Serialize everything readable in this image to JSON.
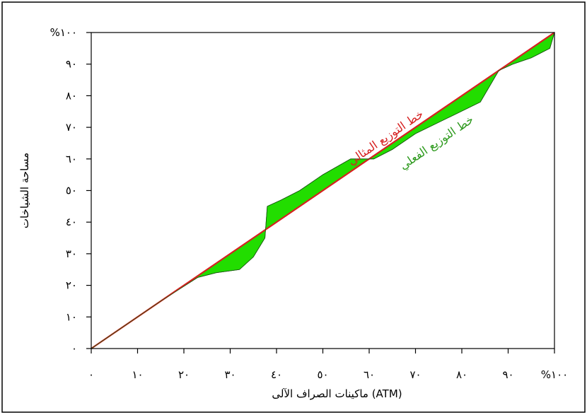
{
  "chart_data": {
    "type": "area",
    "xlabel": "ماكينات الصراف الآلى (ATM)",
    "ylabel": "مساحة الشياخات",
    "xlim": [
      0,
      100
    ],
    "ylim": [
      0,
      100
    ],
    "x_ticks": [
      0,
      10,
      20,
      30,
      40,
      50,
      60,
      70,
      80,
      90,
      100
    ],
    "y_ticks": [
      0,
      10,
      20,
      30,
      40,
      50,
      60,
      70,
      80,
      90,
      100
    ],
    "x_tick_labels": [
      "٠",
      "١٠",
      "٢٠",
      "٣٠",
      "٤٠",
      "٥٠",
      "٦٠",
      "٧٠",
      "٨٠",
      "٩٠",
      "%١٠٠"
    ],
    "y_tick_labels": [
      "٠",
      "١٠",
      "٢٠",
      "٣٠",
      "٤٠",
      "٥٠",
      "٦٠",
      "٧٠",
      "٨٠",
      "٩٠",
      "%١٠٠"
    ],
    "grid": false,
    "series": [
      {
        "name": "خط التوزيع المثالي",
        "color": "#d62020",
        "x": [
          0,
          100
        ],
        "y": [
          0,
          100
        ]
      },
      {
        "name": "خط التوزيع الفعلي",
        "color": "#22dd00",
        "x": [
          0,
          15,
          23,
          27,
          32,
          35,
          37.5,
          38,
          41,
          45,
          50,
          56,
          61,
          65,
          70,
          77,
          84,
          88,
          91,
          95,
          99,
          100
        ],
        "y": [
          0,
          15,
          22.5,
          24,
          25,
          29,
          35,
          45,
          47,
          50,
          55,
          60,
          60,
          63,
          68,
          73,
          78,
          88,
          90,
          92,
          95,
          100
        ]
      }
    ],
    "annotations": [
      {
        "text": "خط التوزيع المثالي",
        "color": "#d62020"
      },
      {
        "text": "خط التوزيع الفعلي",
        "color": "#2e9a1e"
      }
    ]
  }
}
